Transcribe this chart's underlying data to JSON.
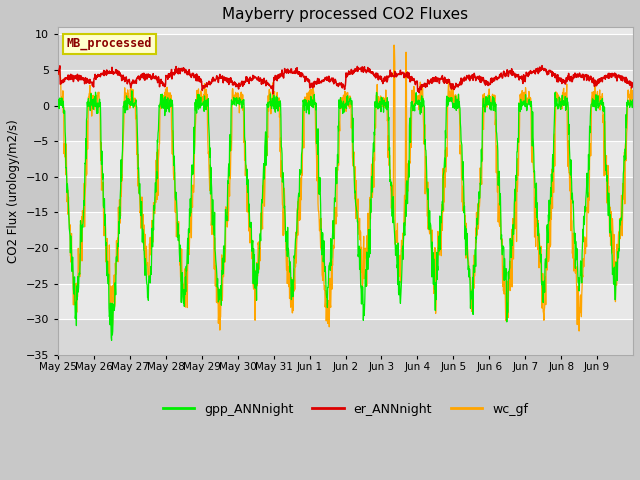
{
  "title": "Mayberry processed CO2 Fluxes",
  "ylabel": "CO2 Flux (urology/m2/s)",
  "ylim": [
    -35,
    11
  ],
  "yticks": [
    -35,
    -30,
    -25,
    -20,
    -15,
    -10,
    -5,
    0,
    5,
    10
  ],
  "fig_bg_color": "#c8c8c8",
  "ax_bg_color": "#e8e8e8",
  "grid_color": "#ffffff",
  "legend_label": "MB_processed",
  "legend_text_color": "#8b0000",
  "legend_bg": "#ffffcc",
  "legend_edge": "#cccc00",
  "line_colors": {
    "gpp": "#00ee00",
    "er": "#dd0000",
    "wc": "#ffa500"
  },
  "n_days": 16,
  "ppd": 96,
  "seed": 7,
  "date_labels": [
    "May 25",
    "May 26",
    "May 27",
    "May 28",
    "May 29",
    "May 30",
    "May 31",
    "Jun 1",
    "Jun 2",
    "Jun 3",
    "Jun 4",
    "Jun 5",
    "Jun 6",
    "Jun 7",
    "Jun 8",
    "Jun 9"
  ]
}
